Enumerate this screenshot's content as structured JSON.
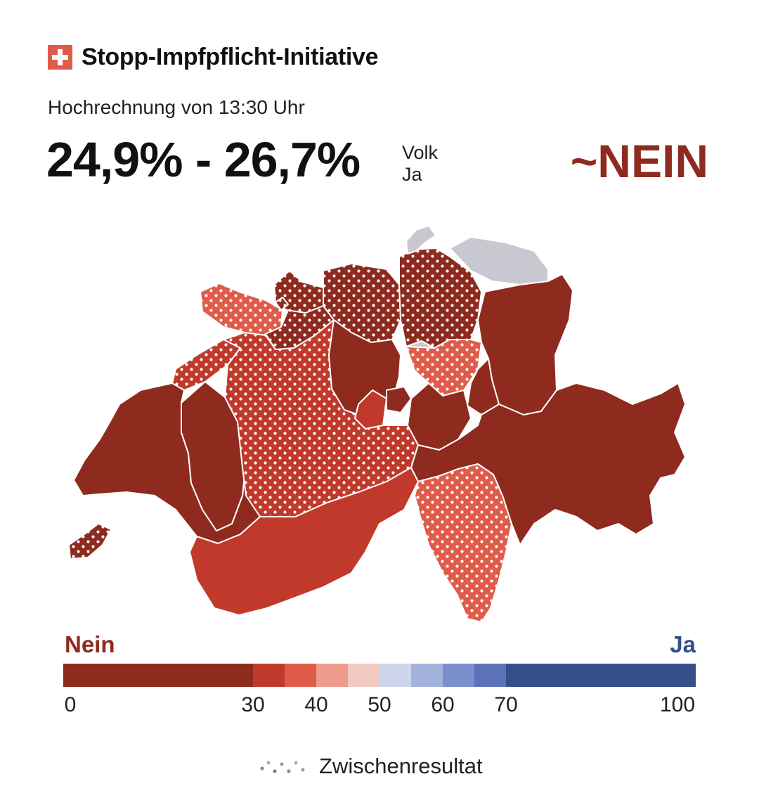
{
  "header": {
    "flag_icon": "swiss-flag-icon",
    "title": "Stopp-Impfpflicht-Initiative",
    "subtitle": "Hochrechnung von 13:30 Uhr",
    "result_range": "24,9% - 26,7%",
    "vote_label_1": "Volk",
    "vote_label_2": "Ja",
    "verdict": "~NEIN"
  },
  "colors": {
    "nein_dark": "#8e2a1e",
    "nein_mid": "#c0392b",
    "nein_light": "#e05c4a",
    "nein_pale": "#ee9a8c",
    "nein_faint": "#f2c9c2",
    "ja_faint": "#cdd6ec",
    "ja_pale": "#a3b3dc",
    "ja_light": "#7b8fcc",
    "ja_mid": "#5b72b8",
    "ja_dark": "#354f8a",
    "no_data": "#c8c8d0"
  },
  "map": {
    "cantons": [
      {
        "name": "GE",
        "color": "#8e2a1e",
        "interim": true
      },
      {
        "name": "VD",
        "color": "#8e2a1e",
        "interim": false
      },
      {
        "name": "VS",
        "color": "#c0392b",
        "interim": false
      },
      {
        "name": "FR",
        "color": "#8e2a1e",
        "interim": false
      },
      {
        "name": "NE",
        "color": "#c0392b",
        "interim": true
      },
      {
        "name": "JU",
        "color": "#e05c4a",
        "interim": true
      },
      {
        "name": "BE",
        "color": "#c0392b",
        "interim": true
      },
      {
        "name": "SO",
        "color": "#8e2a1e",
        "interim": true
      },
      {
        "name": "BL",
        "color": "#8e2a1e",
        "interim": true
      },
      {
        "name": "BS",
        "color": "#8e2a1e",
        "interim": true
      },
      {
        "name": "AG",
        "color": "#8e2a1e",
        "interim": true
      },
      {
        "name": "ZH",
        "color": "#8e2a1e",
        "interim": true
      },
      {
        "name": "SH",
        "color": "#c8c8d0",
        "interim": false
      },
      {
        "name": "TG",
        "color": "#c8c8d0",
        "interim": false
      },
      {
        "name": "AR",
        "color": "#c8c8d0",
        "interim": false
      },
      {
        "name": "AI",
        "color": "#c8c8d0",
        "interim": false
      },
      {
        "name": "SG",
        "color": "#8e2a1e",
        "interim": false
      },
      {
        "name": "LU",
        "color": "#8e2a1e",
        "interim": false
      },
      {
        "name": "ZG",
        "color": "#c8c8d0",
        "interim": false
      },
      {
        "name": "SZ",
        "color": "#e05c4a",
        "interim": true
      },
      {
        "name": "GL",
        "color": "#8e2a1e",
        "interim": false
      },
      {
        "name": "OW",
        "color": "#c0392b",
        "interim": false
      },
      {
        "name": "NW",
        "color": "#8e2a1e",
        "interim": false
      },
      {
        "name": "UR",
        "color": "#8e2a1e",
        "interim": false
      },
      {
        "name": "GR",
        "color": "#8e2a1e",
        "interim": false
      },
      {
        "name": "TI",
        "color": "#e05c4a",
        "interim": true
      }
    ]
  },
  "legend": {
    "left_label": "Nein",
    "right_label": "Ja",
    "segments": [
      {
        "from": 0,
        "to": 30,
        "color": "#8e2a1e"
      },
      {
        "from": 30,
        "to": 35,
        "color": "#c0392b"
      },
      {
        "from": 35,
        "to": 40,
        "color": "#e05c4a"
      },
      {
        "from": 40,
        "to": 45,
        "color": "#ee9a8c"
      },
      {
        "from": 45,
        "to": 50,
        "color": "#f2c9c2"
      },
      {
        "from": 50,
        "to": 55,
        "color": "#cdd6ec"
      },
      {
        "from": 55,
        "to": 60,
        "color": "#a3b3dc"
      },
      {
        "from": 60,
        "to": 65,
        "color": "#7b8fcc"
      },
      {
        "from": 65,
        "to": 70,
        "color": "#5b72b8"
      },
      {
        "from": 70,
        "to": 100,
        "color": "#354f8a"
      }
    ],
    "ticks": [
      "0",
      "30",
      "40",
      "50",
      "60",
      "70",
      "100"
    ],
    "interim_label": "Zwischenresultat",
    "interim_icon": "dot-pattern-icon"
  }
}
